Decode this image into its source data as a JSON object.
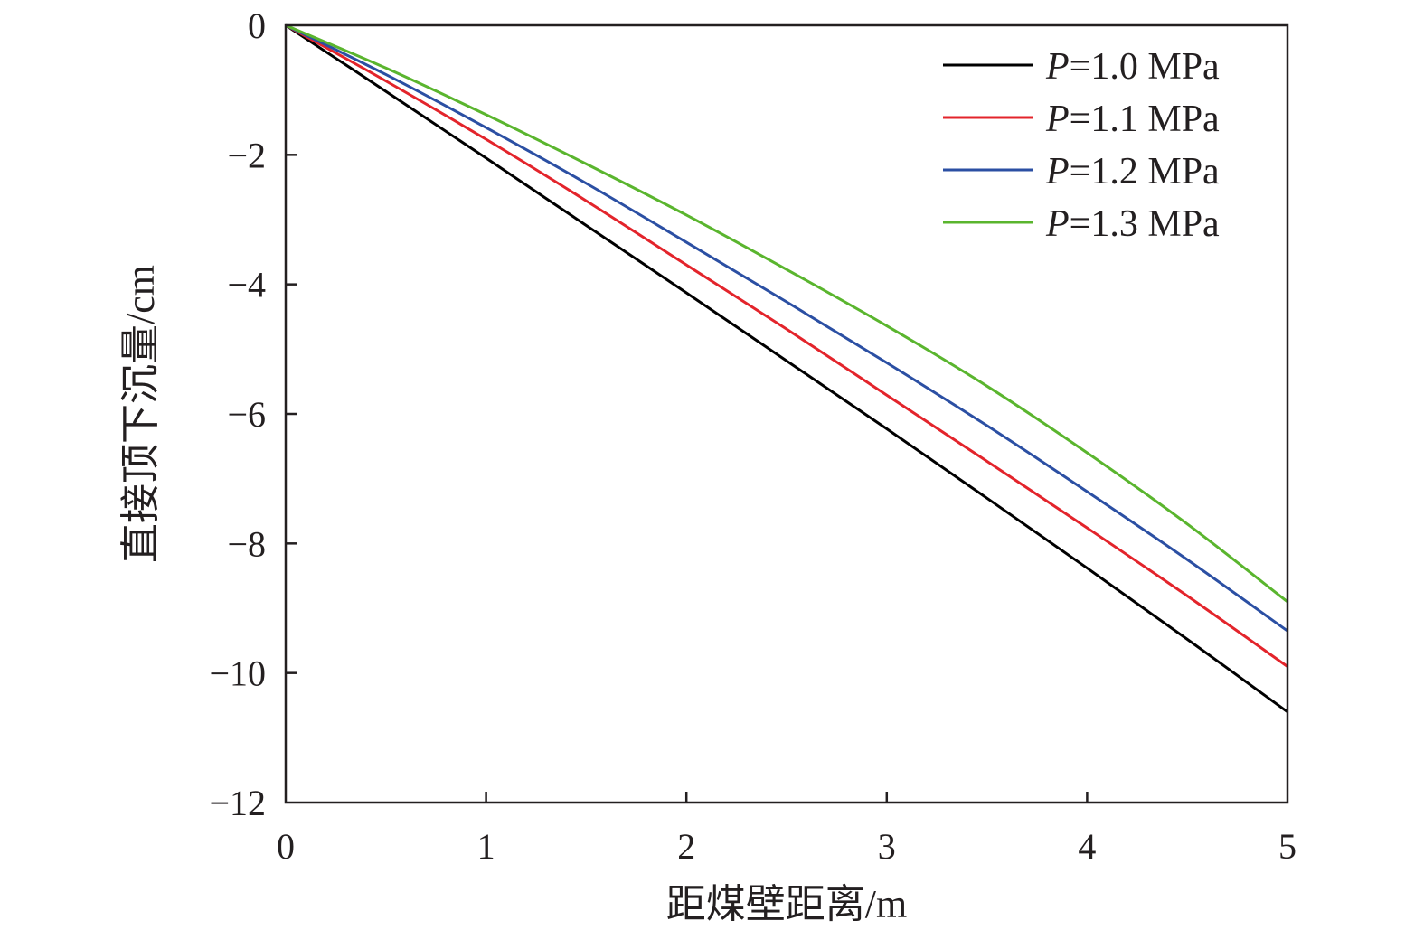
{
  "chart_data": {
    "type": "line",
    "title": "",
    "xlabel": "距煤壁距离/m",
    "ylabel": "直接顶下沉量/cm",
    "xlim": [
      0,
      5
    ],
    "ylim": [
      -12,
      0
    ],
    "xticks": [
      "0",
      "1",
      "2",
      "3",
      "4",
      "5"
    ],
    "yticks": [
      "0",
      "−2",
      "−4",
      "−6",
      "−8",
      "−10",
      "−12"
    ],
    "grid": false,
    "legend_position": "top-right",
    "x": [
      0,
      0.5,
      1,
      1.5,
      2,
      2.5,
      3,
      3.5,
      4,
      4.5,
      5
    ],
    "series": [
      {
        "name": "P=1.0 MPa",
        "legend_var": "P",
        "legend_rest": "=1.0 MPa",
        "color": "#000000",
        "values": [
          0,
          -1.02,
          -2.05,
          -3.09,
          -4.13,
          -5.18,
          -6.23,
          -7.3,
          -8.38,
          -9.48,
          -10.6
        ]
      },
      {
        "name": "P=1.1 MPa",
        "legend_var": "P",
        "legend_rest": "=1.1 MPa",
        "color": "#e3242b",
        "values": [
          0,
          -0.86,
          -1.76,
          -2.71,
          -3.7,
          -4.69,
          -5.71,
          -6.73,
          -7.76,
          -8.81,
          -9.9
        ]
      },
      {
        "name": "P=1.2 MPa",
        "legend_var": "P",
        "legend_rest": "=1.2 MPa",
        "color": "#2b4fa3",
        "values": [
          0,
          -0.76,
          -1.58,
          -2.44,
          -3.35,
          -4.27,
          -5.21,
          -6.18,
          -7.2,
          -8.25,
          -9.35
        ]
      },
      {
        "name": "P=1.3 MPa",
        "legend_var": "P",
        "legend_rest": "=1.3 MPa",
        "color": "#5ab52e",
        "values": [
          0,
          -0.66,
          -1.38,
          -2.14,
          -2.93,
          -3.77,
          -4.64,
          -5.57,
          -6.6,
          -7.7,
          -8.9
        ]
      }
    ]
  }
}
